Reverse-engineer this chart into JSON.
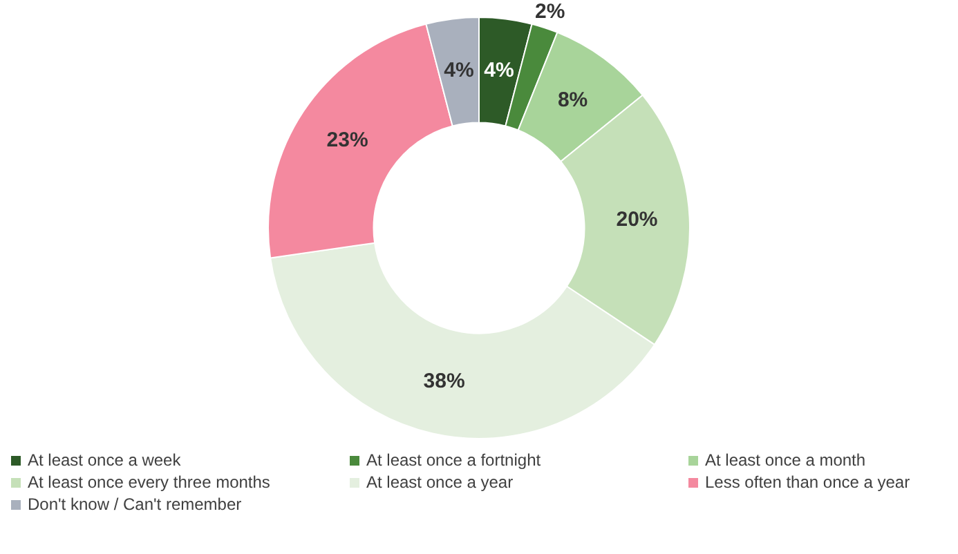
{
  "chart_data": {
    "type": "donut",
    "categories": [
      "At least once a week",
      "At least once a fortnight",
      "At least once a month",
      "At least once every three months",
      "At least once a year",
      "Less often than once a year",
      "Don't know / Can't remember"
    ],
    "values": [
      4,
      2,
      8,
      20,
      38,
      23,
      4
    ],
    "colors": [
      "#2d5a27",
      "#4a8a3c",
      "#a8d49a",
      "#c5e0b8",
      "#e4efdf",
      "#f4899f",
      "#a9b0bd"
    ],
    "value_labels": [
      "4%",
      "2%",
      "8%",
      "20%",
      "38%",
      "23%",
      "4%"
    ],
    "legend": "bottom"
  }
}
